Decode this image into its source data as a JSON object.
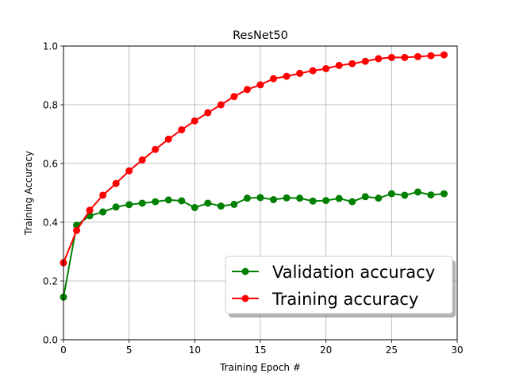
{
  "chart_data": {
    "type": "line",
    "title": "ResNet50",
    "xlabel": "Training Epoch #",
    "ylabel": "Training Accuracy",
    "xlim": [
      0,
      30
    ],
    "ylim": [
      0.0,
      1.0
    ],
    "xticks": [
      0,
      5,
      10,
      15,
      20,
      25,
      30
    ],
    "xtick_labels": [
      "0",
      "5",
      "10",
      "15",
      "20",
      "25",
      "30"
    ],
    "yticks": [
      0.0,
      0.2,
      0.4,
      0.6,
      0.8,
      1.0
    ],
    "ytick_labels": [
      "0.0",
      "0.2",
      "0.4",
      "0.6",
      "0.8",
      "1.0"
    ],
    "grid": true,
    "legend": "lower right",
    "x": [
      0,
      1,
      2,
      3,
      4,
      5,
      6,
      7,
      8,
      9,
      10,
      11,
      12,
      13,
      14,
      15,
      16,
      17,
      18,
      19,
      20,
      21,
      22,
      23,
      24,
      25,
      26,
      27,
      28,
      29
    ],
    "series": [
      {
        "name": "Validation accuracy",
        "color": "#008000",
        "values": [
          0.145,
          0.39,
          0.422,
          0.435,
          0.452,
          0.46,
          0.465,
          0.47,
          0.476,
          0.473,
          0.45,
          0.465,
          0.455,
          0.461,
          0.482,
          0.484,
          0.477,
          0.483,
          0.482,
          0.472,
          0.474,
          0.481,
          0.47,
          0.487,
          0.482,
          0.497,
          0.492,
          0.503,
          0.493,
          0.497
        ]
      },
      {
        "name": "Training accuracy",
        "color": "#ff0000",
        "values": [
          0.262,
          0.372,
          0.441,
          0.492,
          0.532,
          0.575,
          0.612,
          0.648,
          0.683,
          0.715,
          0.745,
          0.773,
          0.8,
          0.828,
          0.852,
          0.868,
          0.889,
          0.897,
          0.907,
          0.916,
          0.923,
          0.934,
          0.94,
          0.948,
          0.957,
          0.961,
          0.961,
          0.964,
          0.967,
          0.97
        ]
      }
    ]
  }
}
